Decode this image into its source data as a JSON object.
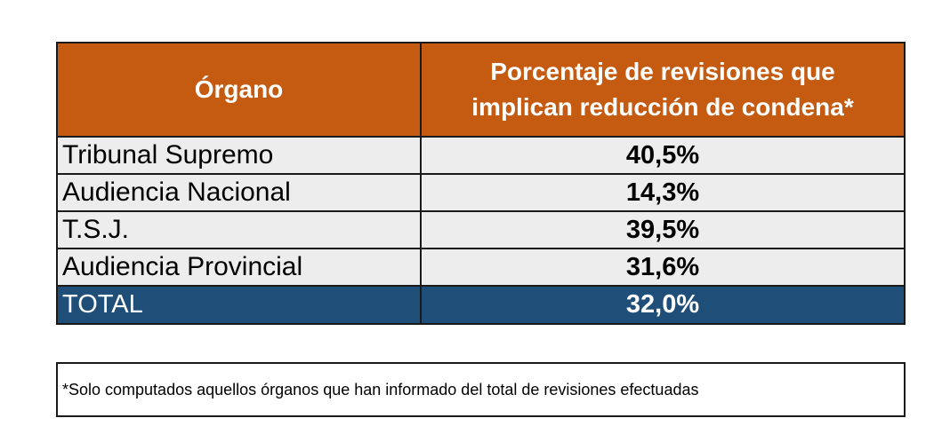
{
  "table": {
    "headers": {
      "organ": "Órgano",
      "percentage_line1": "Porcentaje de revisiones que",
      "percentage_line2": "implican reducción de condena*"
    },
    "rows": [
      {
        "organ": "Tribunal Supremo",
        "percentage": "40,5%"
      },
      {
        "organ": "Audiencia Nacional",
        "percentage": "14,3%"
      },
      {
        "organ": "T.S.J.",
        "percentage": "39,5%"
      },
      {
        "organ": "Audiencia Provincial",
        "percentage": "31,6%"
      }
    ],
    "total": {
      "organ": "TOTAL",
      "percentage": "32,0%"
    }
  },
  "footnote": "*Solo computados aquellos órganos que han informado del total de revisiones efectuadas",
  "colors": {
    "header_bg": "#c55a11",
    "row_bg": "#ededed",
    "total_bg": "#1f4e79"
  }
}
